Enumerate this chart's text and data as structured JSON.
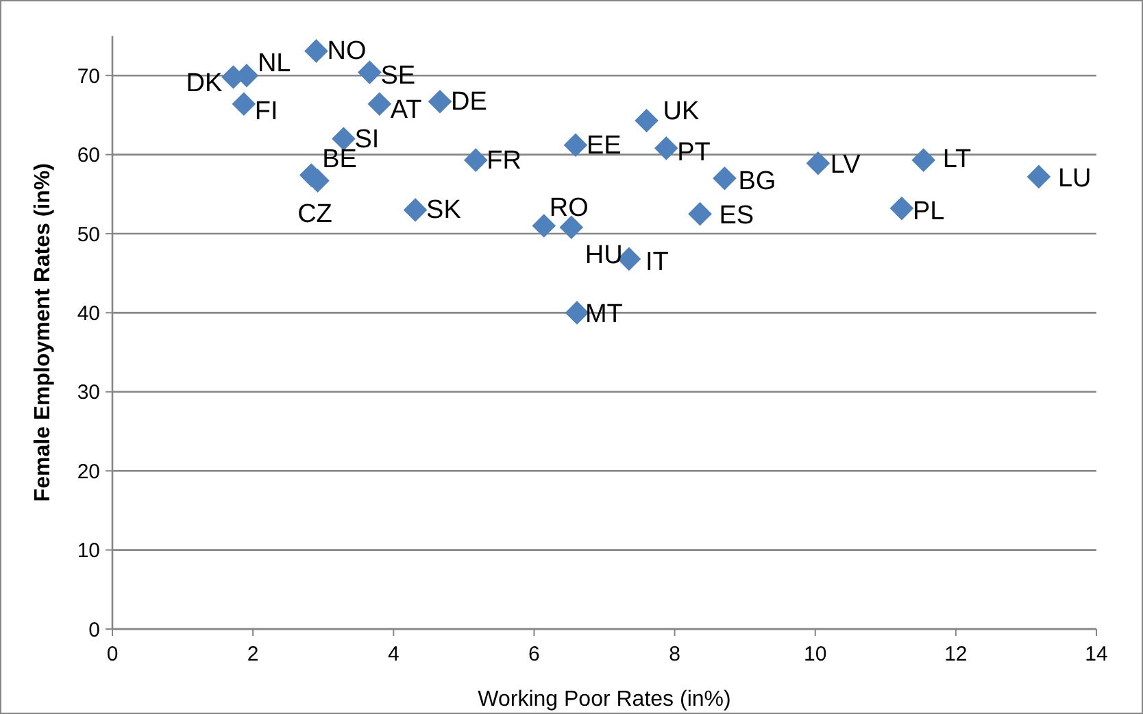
{
  "chart_data": {
    "type": "scatter",
    "xlabel": "Working Poor Rates (in%)",
    "ylabel": "Female Employment Rates (in%)",
    "xlim": [
      0,
      14
    ],
    "xticks": [
      0,
      2,
      4,
      6,
      8,
      10,
      12,
      14
    ],
    "ylim": [
      0,
      75
    ],
    "yticks": [
      0,
      10,
      20,
      30,
      40,
      50,
      60,
      70
    ],
    "grid": "y",
    "marker": "diamond",
    "series": [
      {
        "color": "#4f81bd",
        "x": [
          2.9,
          1.72,
          1.91,
          1.87,
          3.66,
          3.8,
          4.66,
          3.29,
          2.83,
          2.92,
          5.17,
          6.59,
          7.6,
          7.88,
          8.71,
          4.31,
          6.14,
          6.53,
          7.35,
          6.61,
          8.36,
          10.04,
          11.54,
          11.23,
          13.18
        ],
        "values": [
          73.1,
          69.8,
          70.0,
          66.4,
          70.4,
          66.4,
          66.7,
          62.0,
          57.4,
          56.7,
          59.3,
          61.2,
          64.3,
          60.8,
          57.0,
          53.0,
          51.0,
          50.8,
          46.8,
          40.0,
          52.5,
          58.9,
          59.3,
          53.2,
          57.2
        ]
      }
    ],
    "annotations": [
      {
        "text": "NO",
        "x": 2.9,
        "y": 73.1
      },
      {
        "text": "DK",
        "x": 1.72,
        "y": 69.8
      },
      {
        "text": "NL",
        "x": 1.91,
        "y": 70.0
      },
      {
        "text": "FI",
        "x": 1.87,
        "y": 66.4
      },
      {
        "text": "SE",
        "x": 3.66,
        "y": 70.4
      },
      {
        "text": "AT",
        "x": 3.8,
        "y": 66.4
      },
      {
        "text": "DE",
        "x": 4.66,
        "y": 66.7
      },
      {
        "text": "SI",
        "x": 3.29,
        "y": 62.0
      },
      {
        "text": "BE",
        "x": 2.83,
        "y": 57.4
      },
      {
        "text": "CZ",
        "x": 2.92,
        "y": 56.7
      },
      {
        "text": "FR",
        "x": 5.17,
        "y": 59.3
      },
      {
        "text": "EE",
        "x": 6.59,
        "y": 61.2
      },
      {
        "text": "UK",
        "x": 7.6,
        "y": 64.3
      },
      {
        "text": "PT",
        "x": 7.88,
        "y": 60.8
      },
      {
        "text": "BG",
        "x": 8.71,
        "y": 57.0
      },
      {
        "text": "SK",
        "x": 4.31,
        "y": 53.0
      },
      {
        "text": "RO",
        "x": 6.14,
        "y": 51.0
      },
      {
        "text": "HU",
        "x": 6.53,
        "y": 50.8
      },
      {
        "text": "IT",
        "x": 7.35,
        "y": 46.8
      },
      {
        "text": "MT",
        "x": 6.61,
        "y": 40.0
      },
      {
        "text": "ES",
        "x": 8.36,
        "y": 52.5
      },
      {
        "text": "LV",
        "x": 10.04,
        "y": 58.9
      },
      {
        "text": "LT",
        "x": 11.54,
        "y": 59.3
      },
      {
        "text": "PL",
        "x": 11.23,
        "y": 53.2
      },
      {
        "text": "LU",
        "x": 13.18,
        "y": 57.2
      }
    ]
  }
}
